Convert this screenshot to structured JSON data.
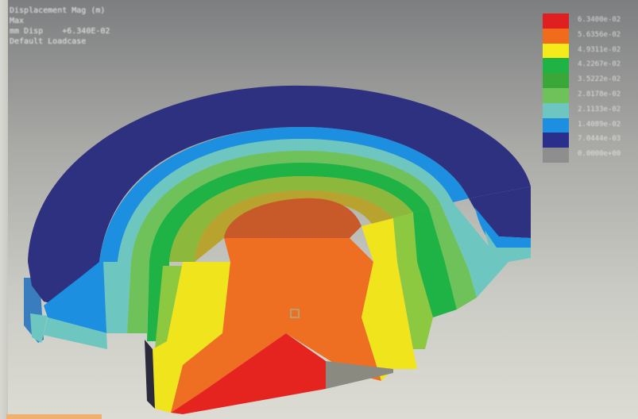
{
  "result_info": {
    "line1": "Displacement Mag (m)",
    "line2": "Max",
    "line3": "mm Disp    +6.340E-02",
    "line4": "Default Loadcase"
  },
  "legend": [
    {
      "color": "#e02020",
      "label": "6.3400e-02"
    },
    {
      "color": "#f06c1c",
      "label": "5.6356e-02"
    },
    {
      "color": "#f5ea1a",
      "label": "4.9311e-02"
    },
    {
      "color": "#1fb244",
      "label": "4.2267e-02"
    },
    {
      "color": "#3aa838",
      "label": "3.5222e-02"
    },
    {
      "color": "#6fc25a",
      "label": "2.8178e-02"
    },
    {
      "color": "#6ec6c0",
      "label": "2.1133e-02"
    },
    {
      "color": "#1c8fe0",
      "label": "1.4089e-02"
    },
    {
      "color": "#2a2f8c",
      "label": "7.0444e-03"
    },
    {
      "color": "#8e8e8e",
      "label": "0.0000e+00"
    }
  ],
  "colors": {
    "outer_ring": "#2e3180",
    "background": "#b8b9b4"
  }
}
